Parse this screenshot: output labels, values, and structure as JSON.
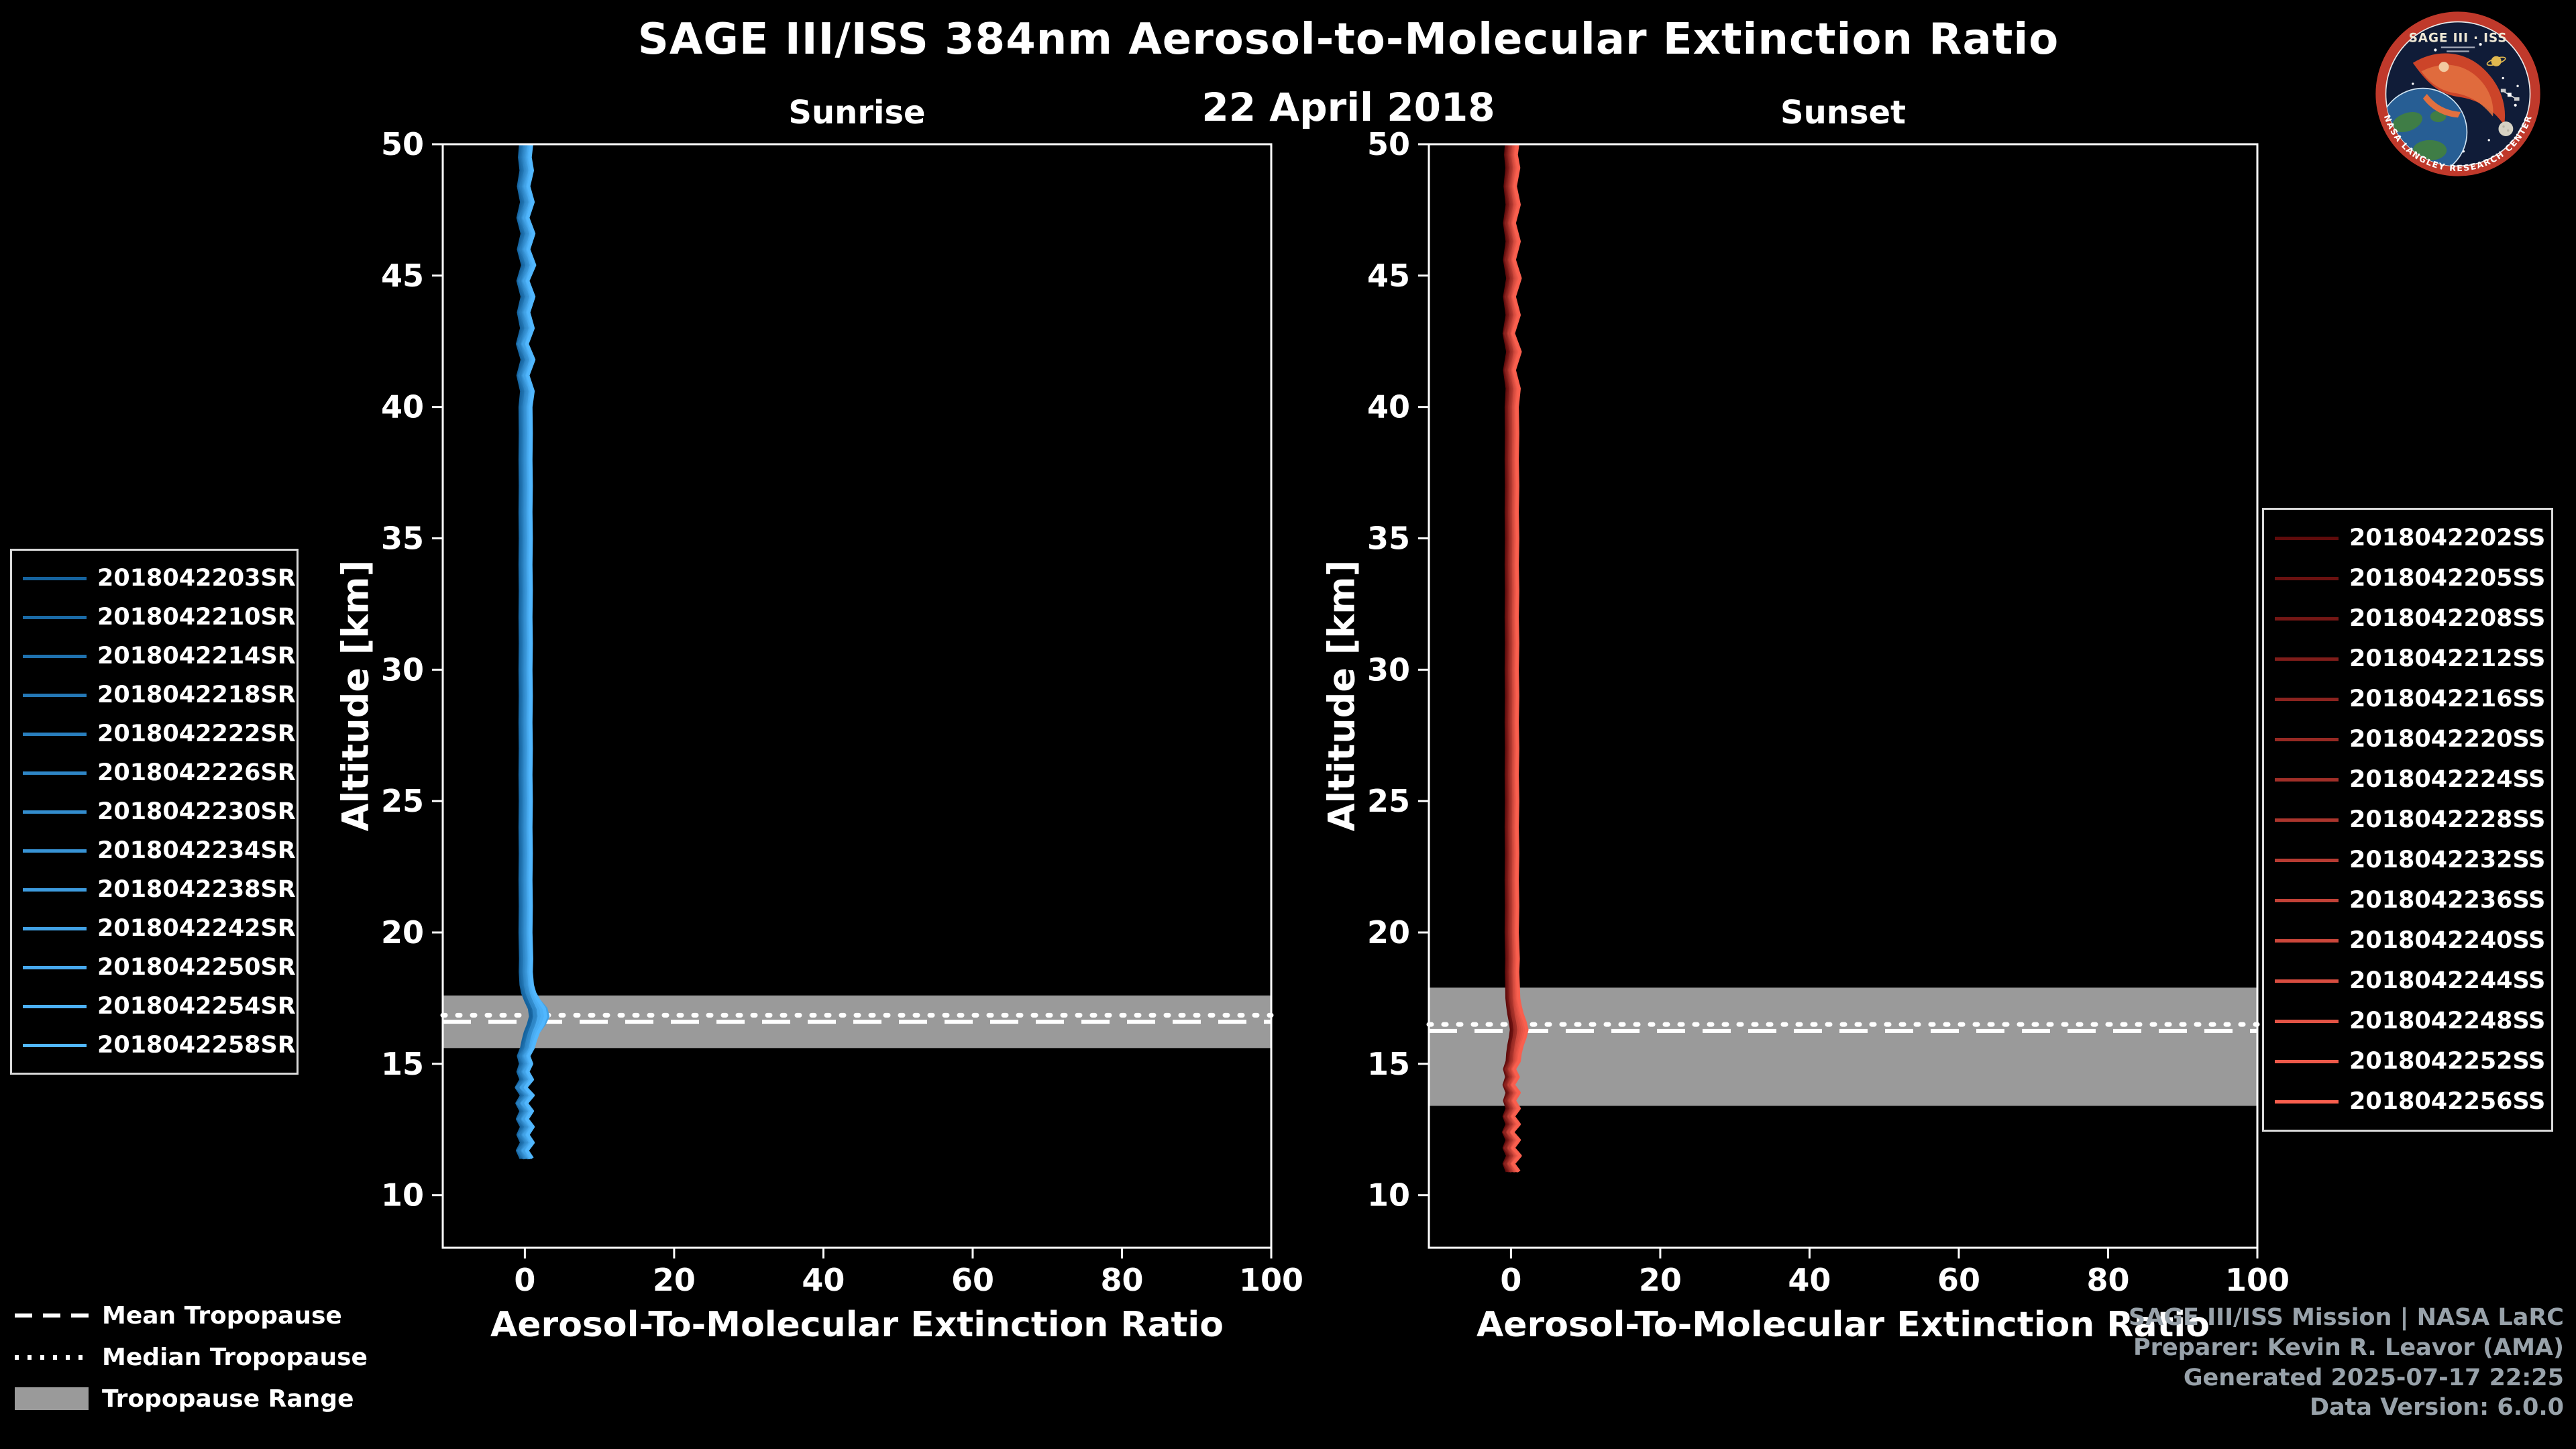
{
  "logo": {
    "title": "SAGE III · ISS",
    "ring_text": "NASA LANGLEY RESEARCH CENTER"
  },
  "footer": {
    "lines": [
      "SAGE III/ISS Mission | NASA LaRC",
      "Preparer: Kevin R. Leavor (AMA)",
      "Generated 2025-07-17 22:25",
      "Data Version: 6.0.0"
    ]
  },
  "tropopause_legend": [
    {
      "label": "Mean Tropopause",
      "style": "dashed"
    },
    {
      "label": "Median Tropopause",
      "style": "dotted"
    },
    {
      "label": "Tropopause Range",
      "style": "band"
    }
  ],
  "chart_data": {
    "type": "line",
    "title": "SAGE III/ISS 384nm Aerosol-to-Molecular Extinction Ratio",
    "subtitle": "22 April 2018",
    "xlabel": "Aerosol-To-Molecular Extinction Ratio",
    "ylabel": "Altitude [km]",
    "xlim": [
      -11,
      100
    ],
    "ylim": [
      8,
      50
    ],
    "xticks": [
      0,
      20,
      40,
      60,
      80,
      100
    ],
    "yticks": [
      10,
      15,
      20,
      25,
      30,
      35,
      40,
      45,
      50
    ],
    "grid": false,
    "band_color": "#9a9a9a",
    "axis_color": "#ffffff",
    "panels": [
      {
        "title": "Sunrise",
        "legend_position": "left",
        "tropopause": {
          "range": [
            15.6,
            17.6
          ],
          "mean": 16.6,
          "median": 16.85
        },
        "series": [
          {
            "name": "2018042203SR",
            "color": "#15639e"
          },
          {
            "name": "2018042210SR",
            "color": "#1a6aa6"
          },
          {
            "name": "2018042214SR",
            "color": "#1f71ae"
          },
          {
            "name": "2018042218SR",
            "color": "#2478b6"
          },
          {
            "name": "2018042222SR",
            "color": "#297fbe"
          },
          {
            "name": "2018042226SR",
            "color": "#2e86c6"
          },
          {
            "name": "2018042230SR",
            "color": "#338dce"
          },
          {
            "name": "2018042234SR",
            "color": "#3894d6"
          },
          {
            "name": "2018042238SR",
            "color": "#3d9bde"
          },
          {
            "name": "2018042242SR",
            "color": "#42a2e6"
          },
          {
            "name": "2018042250SR",
            "color": "#47a9ee"
          },
          {
            "name": "2018042254SR",
            "color": "#4cb0f6"
          },
          {
            "name": "2018042258SR",
            "color": "#51b7fe"
          }
        ],
        "profile": [
          [
            11.4,
            0.3
          ],
          [
            11.7,
            -0.4
          ],
          [
            12.0,
            0.4
          ],
          [
            12.3,
            -0.3
          ],
          [
            12.6,
            0.4
          ],
          [
            12.9,
            -0.4
          ],
          [
            13.2,
            0.3
          ],
          [
            13.5,
            -0.5
          ],
          [
            13.8,
            0.4
          ],
          [
            14.1,
            -0.6
          ],
          [
            14.4,
            0.3
          ],
          [
            14.7,
            -0.3
          ],
          [
            15.0,
            0.2
          ],
          [
            15.3,
            -0.2
          ],
          [
            15.6,
            0.4
          ],
          [
            15.9,
            0.7
          ],
          [
            16.2,
            1.1
          ],
          [
            16.5,
            1.7
          ],
          [
            16.8,
            2.1
          ],
          [
            17.1,
            1.9
          ],
          [
            17.4,
            1.2
          ],
          [
            17.7,
            0.6
          ],
          [
            18.0,
            0.3
          ],
          [
            18.5,
            0.15
          ],
          [
            19.0,
            0.2
          ],
          [
            20.0,
            0.1
          ],
          [
            21.0,
            0.15
          ],
          [
            22.0,
            0.1
          ],
          [
            23.0,
            0.15
          ],
          [
            24.0,
            0.1
          ],
          [
            25.0,
            0.15
          ],
          [
            26.0,
            0.1
          ],
          [
            27.0,
            0.15
          ],
          [
            28.0,
            0.1
          ],
          [
            29.0,
            0.15
          ],
          [
            30.0,
            0.1
          ],
          [
            31.0,
            0.15
          ],
          [
            32.0,
            0.1
          ],
          [
            33.0,
            0.15
          ],
          [
            34.0,
            0.1
          ],
          [
            35.0,
            0.15
          ],
          [
            36.0,
            0.1
          ],
          [
            37.0,
            0.15
          ],
          [
            38.0,
            0.1
          ],
          [
            39.0,
            0.15
          ],
          [
            40.0,
            0.1
          ],
          [
            40.6,
            0.4
          ],
          [
            41.2,
            -0.3
          ],
          [
            41.8,
            0.5
          ],
          [
            42.4,
            -0.4
          ],
          [
            43.0,
            0.4
          ],
          [
            43.6,
            -0.2
          ],
          [
            44.2,
            0.5
          ],
          [
            44.8,
            -0.3
          ],
          [
            45.4,
            0.6
          ],
          [
            46.0,
            -0.2
          ],
          [
            46.6,
            0.5
          ],
          [
            47.2,
            -0.3
          ],
          [
            47.8,
            0.4
          ],
          [
            48.4,
            -0.2
          ],
          [
            49.0,
            0.3
          ],
          [
            49.5,
            0.0
          ],
          [
            50.0,
            0.2
          ]
        ]
      },
      {
        "title": "Sunset",
        "legend_position": "right",
        "tropopause": {
          "range": [
            13.4,
            17.9
          ],
          "mean": 16.25,
          "median": 16.5
        },
        "series": [
          {
            "name": "2018042202SS",
            "color": "#5f0b0b"
          },
          {
            "name": "2018042205SS",
            "color": "#6a1110"
          },
          {
            "name": "2018042208SS",
            "color": "#751715"
          },
          {
            "name": "2018042212SS",
            "color": "#801d1a"
          },
          {
            "name": "2018042216SS",
            "color": "#8b231f"
          },
          {
            "name": "2018042220SS",
            "color": "#962923"
          },
          {
            "name": "2018042224SS",
            "color": "#a12f28"
          },
          {
            "name": "2018042228SS",
            "color": "#ac352d"
          },
          {
            "name": "2018042232SS",
            "color": "#b73b32"
          },
          {
            "name": "2018042236SS",
            "color": "#c24137"
          },
          {
            "name": "2018042240SS",
            "color": "#cd473b"
          },
          {
            "name": "2018042244SS",
            "color": "#d84d40"
          },
          {
            "name": "2018042248SS",
            "color": "#e35345"
          },
          {
            "name": "2018042252SS",
            "color": "#ee594a"
          },
          {
            "name": "2018042256SS",
            "color": "#f95f4e"
          }
        ],
        "profile": [
          [
            10.9,
            0.3
          ],
          [
            11.2,
            -0.3
          ],
          [
            11.5,
            0.4
          ],
          [
            11.8,
            -0.3
          ],
          [
            12.1,
            0.3
          ],
          [
            12.4,
            -0.4
          ],
          [
            12.7,
            0.3
          ],
          [
            13.0,
            -0.3
          ],
          [
            13.3,
            0.3
          ],
          [
            13.6,
            -0.2
          ],
          [
            13.9,
            0.3
          ],
          [
            14.2,
            -0.3
          ],
          [
            14.5,
            0.2
          ],
          [
            14.8,
            -0.2
          ],
          [
            15.1,
            0.3
          ],
          [
            15.4,
            0.4
          ],
          [
            15.7,
            0.6
          ],
          [
            16.0,
            0.9
          ],
          [
            16.3,
            1.1
          ],
          [
            16.6,
            0.9
          ],
          [
            16.9,
            0.6
          ],
          [
            17.2,
            0.4
          ],
          [
            17.5,
            0.25
          ],
          [
            18.0,
            0.2
          ],
          [
            18.5,
            0.15
          ],
          [
            19.0,
            0.2
          ],
          [
            20.0,
            0.1
          ],
          [
            21.0,
            0.15
          ],
          [
            22.0,
            0.1
          ],
          [
            23.0,
            0.15
          ],
          [
            24.0,
            0.1
          ],
          [
            25.0,
            0.15
          ],
          [
            26.0,
            0.1
          ],
          [
            27.0,
            0.15
          ],
          [
            28.0,
            0.1
          ],
          [
            29.0,
            0.15
          ],
          [
            30.0,
            0.1
          ],
          [
            31.0,
            0.15
          ],
          [
            32.0,
            0.1
          ],
          [
            33.0,
            0.15
          ],
          [
            34.0,
            0.1
          ],
          [
            35.0,
            0.15
          ],
          [
            36.0,
            0.1
          ],
          [
            37.0,
            0.15
          ],
          [
            38.0,
            0.1
          ],
          [
            39.0,
            0.15
          ],
          [
            40.0,
            0.1
          ],
          [
            40.7,
            0.3
          ],
          [
            41.4,
            -0.2
          ],
          [
            42.1,
            0.4
          ],
          [
            42.8,
            -0.3
          ],
          [
            43.5,
            0.3
          ],
          [
            44.2,
            -0.2
          ],
          [
            44.9,
            0.4
          ],
          [
            45.6,
            -0.2
          ],
          [
            46.3,
            0.3
          ],
          [
            47.0,
            -0.2
          ],
          [
            47.7,
            0.3
          ],
          [
            48.4,
            -0.1
          ],
          [
            49.1,
            0.25
          ],
          [
            49.6,
            0.0
          ],
          [
            50.0,
            0.15
          ]
        ]
      }
    ]
  }
}
